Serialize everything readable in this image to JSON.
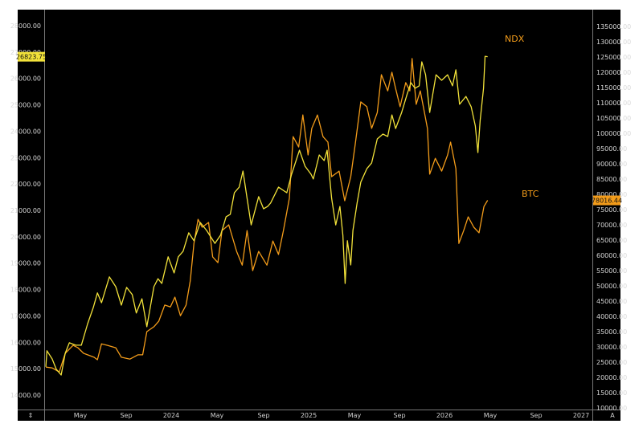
{
  "chart_data": {
    "type": "line",
    "title": "",
    "grid": false,
    "x_tick_labels": [
      "May",
      "Sep",
      "2024",
      "May",
      "Sep",
      "2025",
      "May",
      "Sep",
      "2026",
      "May",
      "Sep",
      "2027"
    ],
    "left_axis": {
      "ylim": [
        14000,
        28000
      ],
      "ticks": [
        "14000.00",
        "15000.00",
        "16000.00",
        "17000.00",
        "18000.00",
        "19000.00",
        "20000.00",
        "21000.00",
        "22000.00",
        "23000.00",
        "24000.00",
        "25000.00",
        "26000.00",
        "27000.00",
        "28000.00"
      ]
    },
    "right_axis": {
      "ylim": [
        10000,
        135000
      ],
      "ticks": [
        "10000.00",
        "15000.00",
        "20000.00",
        "25000.00",
        "30000.00",
        "35000.00",
        "40000.00",
        "45000.00",
        "50000.00",
        "55000.00",
        "60000.00",
        "65000.00",
        "70000.00",
        "75000.00",
        "80000.00",
        "85000.00",
        "90000.00",
        "95000.00",
        "100000.00",
        "105000.00",
        "110000.00",
        "115000.00",
        "120000.00",
        "125000.00",
        "130000.00",
        "135000.00"
      ]
    },
    "corner_left": "⇕",
    "corner_right": "A",
    "series": [
      {
        "name": "NDX",
        "axis": "left",
        "color": "#f2e23a",
        "label_color": "#f39c1a",
        "last_value": "26823.75",
        "x": [
          "2023-01-31",
          "2023-02-03",
          "2023-02-17",
          "2023-02-28",
          "2023-03-13",
          "2023-03-24",
          "2023-04-04",
          "2023-04-21",
          "2023-05-06",
          "2023-05-23",
          "2023-06-07",
          "2023-06-18",
          "2023-06-29",
          "2023-07-20",
          "2023-08-06",
          "2023-08-21",
          "2023-09-04",
          "2023-09-19",
          "2023-09-30",
          "2023-10-15",
          "2023-10-28",
          "2023-11-16",
          "2023-11-27",
          "2023-12-07",
          "2023-12-24",
          "2024-01-09",
          "2024-01-20",
          "2024-02-02",
          "2024-02-17",
          "2024-03-02",
          "2024-03-19",
          "2024-04-05",
          "2024-04-27",
          "2024-05-12",
          "2024-05-27",
          "2024-06-07",
          "2024-06-18",
          "2024-07-01",
          "2024-07-11",
          "2024-07-22",
          "2024-08-02",
          "2024-08-22",
          "2024-09-04",
          "2024-09-15",
          "2024-09-23",
          "2024-10-14",
          "2024-11-05",
          "2024-11-18",
          "2024-12-09",
          "2024-12-24",
          "2025-01-09",
          "2025-01-15",
          "2025-01-31",
          "2025-02-13",
          "2025-02-21",
          "2025-03-05",
          "2025-03-16",
          "2025-03-27",
          "2025-04-04",
          "2025-04-10",
          "2025-04-16",
          "2025-04-25",
          "2025-05-01",
          "2025-05-12",
          "2025-05-22",
          "2025-06-07",
          "2025-06-20",
          "2025-07-05",
          "2025-07-20",
          "2025-08-02",
          "2025-08-13",
          "2025-08-23",
          "2025-09-08",
          "2025-09-23",
          "2025-10-03",
          "2025-10-14",
          "2025-10-25",
          "2025-11-01",
          "2025-11-11",
          "2025-11-22",
          "2025-12-09",
          "2025-12-24",
          "2026-01-09",
          "2026-01-22",
          "2026-01-31",
          "2026-02-10",
          "2026-02-27",
          "2026-03-13",
          "2026-03-24",
          "2026-03-31",
          "2026-04-06",
          "2026-04-15",
          "2026-04-19",
          "2026-04-26"
        ],
        "y": [
          15070,
          15680,
          15370,
          14980,
          14760,
          15590,
          15980,
          15890,
          15890,
          16710,
          17320,
          17870,
          17500,
          18480,
          18110,
          17410,
          18080,
          17810,
          17110,
          17650,
          16590,
          18110,
          18410,
          18230,
          19240,
          18630,
          19240,
          19450,
          20150,
          19850,
          20540,
          20240,
          19750,
          20060,
          20760,
          20850,
          21670,
          21880,
          22490,
          21460,
          20450,
          21520,
          21060,
          21150,
          21280,
          21880,
          21670,
          22370,
          23280,
          22670,
          22370,
          22190,
          23100,
          22890,
          23280,
          21460,
          20450,
          21150,
          20060,
          18230,
          19850,
          18930,
          20240,
          21280,
          22070,
          22580,
          22800,
          23710,
          23890,
          23800,
          24620,
          24100,
          24710,
          25410,
          25840,
          25630,
          25720,
          26630,
          26140,
          24710,
          26140,
          25930,
          26140,
          25720,
          26330,
          25020,
          25320,
          24930,
          24200,
          23190,
          24410,
          25630,
          26840,
          26823.75
        ]
      },
      {
        "name": "BTC",
        "axis": "right",
        "color": "#f39c1a",
        "label_color": "#f39c1a",
        "last_value": "78016.44",
        "x": [
          "2023-01-31",
          "2023-02-17",
          "2023-03-08",
          "2023-03-24",
          "2023-04-14",
          "2023-04-27",
          "2023-05-12",
          "2023-06-09",
          "2023-06-18",
          "2023-06-29",
          "2023-07-15",
          "2023-08-06",
          "2023-08-21",
          "2023-09-13",
          "2023-10-04",
          "2023-10-17",
          "2023-10-28",
          "2023-11-16",
          "2023-11-29",
          "2023-12-15",
          "2023-12-30",
          "2024-01-11",
          "2024-01-26",
          "2024-02-10",
          "2024-02-21",
          "2024-03-02",
          "2024-03-13",
          "2024-03-24",
          "2024-04-10",
          "2024-04-21",
          "2024-05-05",
          "2024-05-16",
          "2024-06-03",
          "2024-06-24",
          "2024-07-09",
          "2024-07-22",
          "2024-08-06",
          "2024-08-22",
          "2024-09-13",
          "2024-09-29",
          "2024-10-14",
          "2024-10-27",
          "2024-11-12",
          "2024-11-22",
          "2024-12-07",
          "2024-12-18",
          "2025-01-01",
          "2025-01-11",
          "2025-01-26",
          "2025-02-10",
          "2025-02-23",
          "2025-03-05",
          "2025-03-25",
          "2025-04-09",
          "2025-04-25",
          "2025-05-07",
          "2025-05-22",
          "2025-06-07",
          "2025-06-20",
          "2025-07-05",
          "2025-07-16",
          "2025-08-02",
          "2025-08-13",
          "2025-08-23",
          "2025-09-04",
          "2025-09-19",
          "2025-09-30",
          "2025-10-06",
          "2025-10-17",
          "2025-10-28",
          "2025-11-08",
          "2025-11-16",
          "2025-11-22",
          "2025-12-07",
          "2025-12-24",
          "2026-01-09",
          "2026-01-17",
          "2026-01-31",
          "2026-02-08",
          "2026-02-21",
          "2026-03-05",
          "2026-03-20",
          "2026-04-03",
          "2026-04-16",
          "2026-04-26"
        ],
        "y": [
          23400,
          23100,
          21800,
          27900,
          30500,
          29700,
          27900,
          26600,
          25800,
          31000,
          30500,
          29700,
          26600,
          26000,
          27400,
          27400,
          35000,
          36600,
          38400,
          43700,
          43100,
          46300,
          40200,
          43700,
          51600,
          63900,
          71800,
          69200,
          70800,
          59500,
          57600,
          68100,
          70000,
          61300,
          56800,
          68100,
          55000,
          61300,
          56800,
          64700,
          60300,
          68100,
          78700,
          98900,
          95500,
          106000,
          92900,
          101600,
          106000,
          98900,
          97100,
          85800,
          87600,
          77900,
          85800,
          96300,
          110300,
          108700,
          101600,
          106800,
          119200,
          113900,
          120000,
          114700,
          108700,
          116600,
          113900,
          124500,
          109500,
          113900,
          106800,
          101600,
          86600,
          91800,
          87600,
          92900,
          97100,
          88400,
          63900,
          68100,
          72600,
          69200,
          67400,
          76000,
          78016.44
        ]
      }
    ]
  }
}
